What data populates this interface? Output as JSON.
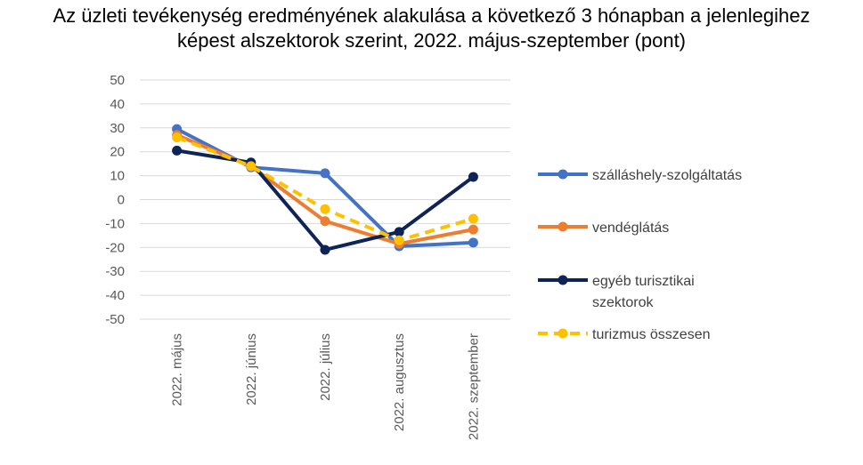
{
  "chart_data": {
    "type": "line",
    "title_line1": "Az üzleti tevékenység eredményének alakulása a következő 3 hónapban a jelenlegihez",
    "title_line2": "képest alszektorok szerint, 2022. május-szeptember (pont)",
    "categories": [
      "2022. május",
      "2022. június",
      "2022. július",
      "2022. augusztus",
      "2022. szeptember"
    ],
    "ylim": [
      -50,
      50
    ],
    "yticks": [
      50,
      40,
      30,
      20,
      10,
      0,
      -10,
      -20,
      -30,
      -40,
      -50
    ],
    "grid": true,
    "legend_position": "right",
    "series": [
      {
        "name": "szálláshely-szolgáltatás",
        "legend_lines": [
          "szálláshely-szolgáltatás"
        ],
        "color": "#4472C4",
        "dashed": false,
        "values": [
          29.5,
          13.5,
          11,
          -19.5,
          -18
        ]
      },
      {
        "name": "vendéglátás",
        "legend_lines": [
          "vendéglátás"
        ],
        "color": "#ED7D31",
        "dashed": false,
        "values": [
          27,
          14,
          -9,
          -18.5,
          -12.5
        ]
      },
      {
        "name": "egyéb turisztikai szektorok",
        "legend_lines": [
          "egyéb turisztikai",
          "szektorok"
        ],
        "color": "#0E2356",
        "dashed": false,
        "values": [
          20.5,
          15.5,
          -21,
          -13.5,
          9.5
        ]
      },
      {
        "name": "turizmus összesen",
        "legend_lines": [
          "turizmus összesen"
        ],
        "color": "#FFC000",
        "dashed": true,
        "values": [
          26,
          14,
          -4,
          -17,
          -8
        ]
      }
    ]
  }
}
